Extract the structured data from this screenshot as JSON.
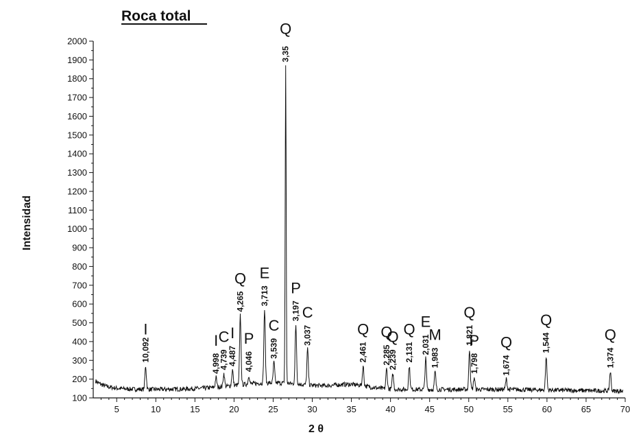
{
  "chart_data": {
    "type": "line",
    "title": "Roca total",
    "xlabel": "2 θ",
    "ylabel": "Intensidad",
    "xlim": [
      2,
      70
    ],
    "ylim": [
      100,
      2000
    ],
    "xticks": [
      "5",
      "10",
      "15",
      "20",
      "25",
      "30",
      "35",
      "40",
      "45",
      "50",
      "55",
      "60",
      "65",
      "70"
    ],
    "yticks": [
      "100",
      "200",
      "300",
      "400",
      "500",
      "600",
      "700",
      "800",
      "900",
      "1000",
      "1100",
      "1200",
      "1300",
      "1400",
      "1500",
      "1600",
      "1700",
      "1800",
      "1900",
      "2000"
    ],
    "grid": false,
    "peaks": [
      {
        "x": 8.7,
        "y": 270,
        "d": "10,092",
        "mineral": "I"
      },
      {
        "x": 17.7,
        "y": 210,
        "d": "4,998",
        "mineral": "I"
      },
      {
        "x": 18.7,
        "y": 230,
        "d": "4,739",
        "mineral": "C"
      },
      {
        "x": 19.8,
        "y": 250,
        "d": "4,487",
        "mineral": "I"
      },
      {
        "x": 20.8,
        "y": 540,
        "d": "4,265",
        "mineral": "Q"
      },
      {
        "x": 21.9,
        "y": 220,
        "d": "4,046",
        "mineral": "P"
      },
      {
        "x": 23.9,
        "y": 570,
        "d": "3,713",
        "mineral": "E"
      },
      {
        "x": 25.1,
        "y": 290,
        "d": "3,539",
        "mineral": "C"
      },
      {
        "x": 26.6,
        "y": 1870,
        "d": "3,35",
        "mineral": "Q"
      },
      {
        "x": 27.9,
        "y": 490,
        "d": "3,197",
        "mineral": "P"
      },
      {
        "x": 29.4,
        "y": 360,
        "d": "3,037",
        "mineral": "C"
      },
      {
        "x": 36.5,
        "y": 270,
        "d": "2,461",
        "mineral": "Q"
      },
      {
        "x": 39.5,
        "y": 255,
        "d": "2,285",
        "mineral": "Q"
      },
      {
        "x": 40.3,
        "y": 230,
        "d": "2,239",
        "mineral": "Q"
      },
      {
        "x": 42.4,
        "y": 270,
        "d": "2,131",
        "mineral": "Q"
      },
      {
        "x": 44.5,
        "y": 310,
        "d": "2,031",
        "mineral": "E"
      },
      {
        "x": 45.7,
        "y": 240,
        "d": "1,983",
        "mineral": "M"
      },
      {
        "x": 50.1,
        "y": 360,
        "d": "1,821",
        "mineral": "Q"
      },
      {
        "x": 50.7,
        "y": 210,
        "d": "1,798",
        "mineral": "P"
      },
      {
        "x": 54.8,
        "y": 200,
        "d": "1,674",
        "mineral": "Q"
      },
      {
        "x": 59.9,
        "y": 320,
        "d": "1,544",
        "mineral": "Q"
      },
      {
        "x": 68.1,
        "y": 240,
        "d": "1,374",
        "mineral": "Q"
      }
    ]
  }
}
